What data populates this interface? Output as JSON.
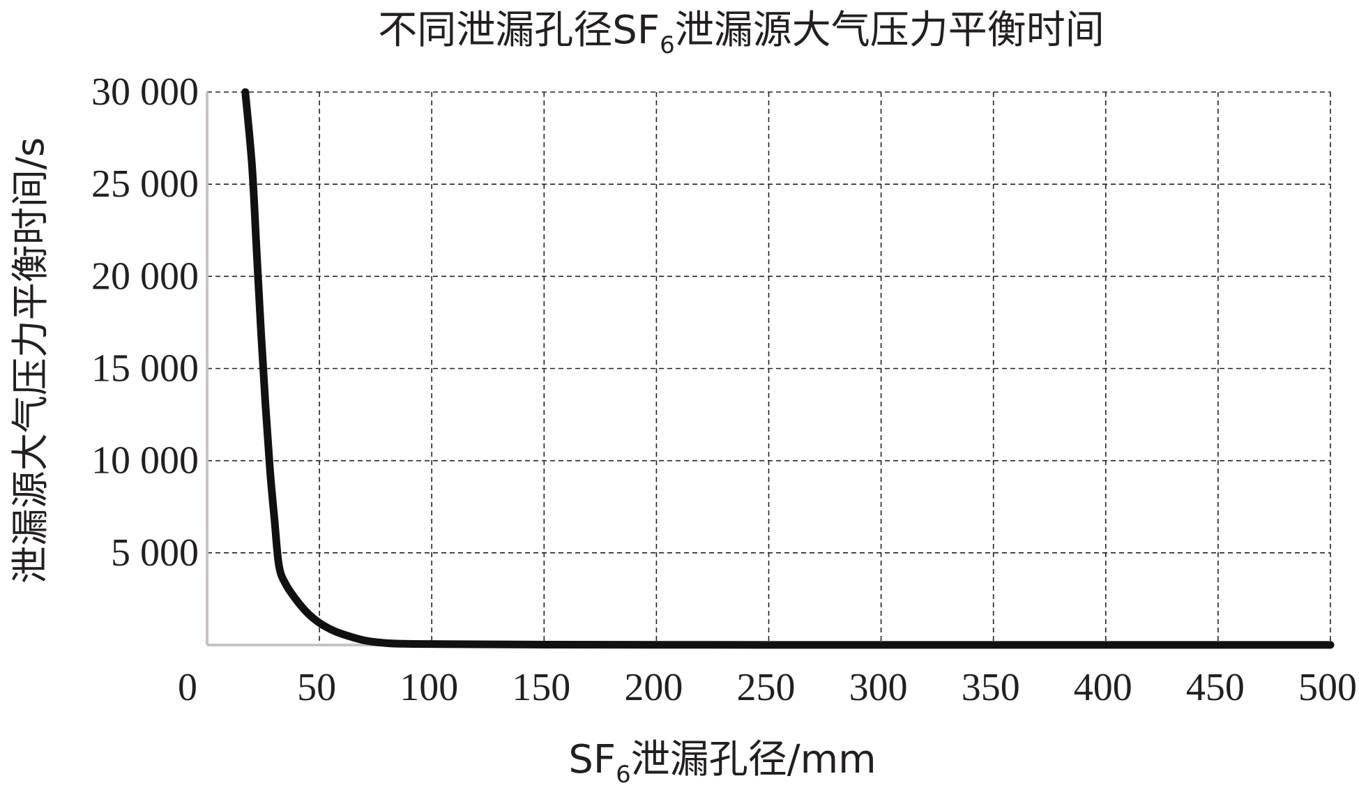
{
  "chart_data": {
    "type": "line",
    "title": {
      "pre": "不同泄漏孔径SF",
      "sub": "6",
      "post": "泄漏源大气压力平衡时间"
    },
    "xlabel": {
      "pre": "SF",
      "sub": "6",
      "post": "泄漏孔径/mm"
    },
    "ylabel": "泄漏源大气压力平衡时间/s",
    "xlim": [
      0,
      500
    ],
    "ylim": [
      0,
      30000
    ],
    "x_ticks": [
      0,
      50,
      100,
      150,
      200,
      250,
      300,
      350,
      400,
      450,
      500
    ],
    "x_tick_labels": [
      "0",
      "50",
      "100",
      "150",
      "200",
      "250",
      "300",
      "350",
      "400",
      "450",
      "500"
    ],
    "y_ticks": [
      5000,
      10000,
      15000,
      20000,
      25000,
      30000
    ],
    "y_tick_labels": [
      "5 000",
      "10 000",
      "15 000",
      "20 000",
      "25 000",
      "30 000"
    ],
    "grid": true,
    "grid_style": "dashed",
    "series": [
      {
        "color": "#111111",
        "x": [
          17,
          20,
          22,
          24,
          26,
          28,
          30,
          32,
          35,
          40,
          45,
          50,
          55,
          60,
          70,
          80,
          90,
          100,
          120,
          150,
          200,
          250,
          300,
          400,
          500
        ],
        "y": [
          30000,
          26000,
          21500,
          17000,
          13000,
          9500,
          6800,
          4300,
          3300,
          2400,
          1700,
          1200,
          850,
          600,
          250,
          100,
          60,
          50,
          40,
          20,
          10,
          5,
          5,
          5,
          5
        ]
      }
    ]
  }
}
